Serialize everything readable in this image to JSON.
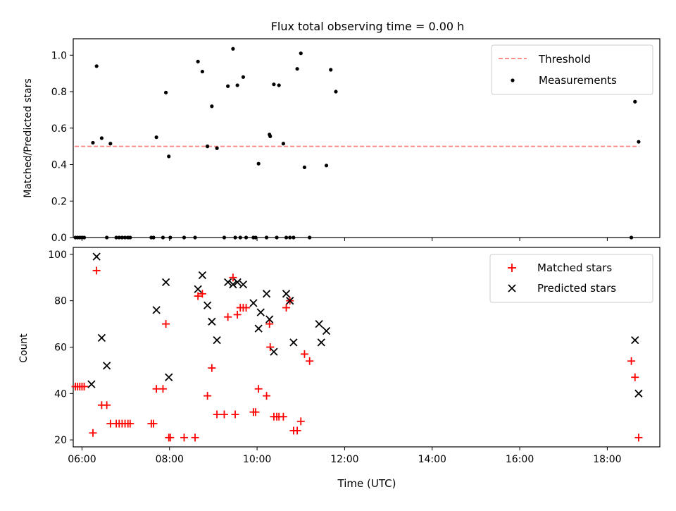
{
  "chart_data": [
    {
      "type": "scatter",
      "title": "Flux total observing time = 0.00 h",
      "ylabel": "Matched/Predicted stars",
      "xlabel": "",
      "xlim": [
        "05:48",
        "19:12"
      ],
      "ylim": [
        0,
        1.09
      ],
      "yticks": [
        "0.0",
        "0.2",
        "0.4",
        "0.6",
        "0.8",
        "1.0"
      ],
      "xticks": [
        "06:00",
        "08:00",
        "10:00",
        "12:00",
        "14:00",
        "16:00",
        "18:00"
      ],
      "xticklabels_visible": false,
      "legend_position": "upper right",
      "threshold": {
        "name": "Threshold",
        "y": 0.5,
        "x_start": "05:50",
        "x_end": "18:44",
        "color": "#ff7f7f",
        "style": "dashed"
      },
      "series": [
        {
          "name": "Measurements",
          "color": "#000000",
          "marker": "dot",
          "points": [
            [
              "05:51",
              0
            ],
            [
              "05:54",
              0
            ],
            [
              "05:57",
              0
            ],
            [
              "06:00",
              0
            ],
            [
              "06:03",
              0
            ],
            [
              "06:15",
              0.52
            ],
            [
              "06:20",
              0.94
            ],
            [
              "06:27",
              0.545
            ],
            [
              "06:34",
              0
            ],
            [
              "06:39",
              0.515
            ],
            [
              "06:47",
              0
            ],
            [
              "06:51",
              0
            ],
            [
              "06:55",
              0
            ],
            [
              "06:59",
              0
            ],
            [
              "07:03",
              0
            ],
            [
              "07:06",
              0
            ],
            [
              "07:35",
              0
            ],
            [
              "07:38",
              0
            ],
            [
              "07:42",
              0.55
            ],
            [
              "07:51",
              0
            ],
            [
              "07:55",
              0.795
            ],
            [
              "07:59",
              0.445
            ],
            [
              "08:01",
              0
            ],
            [
              "08:20",
              0
            ],
            [
              "08:35",
              0
            ],
            [
              "08:39",
              0.965
            ],
            [
              "08:45",
              0.91
            ],
            [
              "08:52",
              0.5
            ],
            [
              "08:58",
              0.72
            ],
            [
              "09:05",
              0.49
            ],
            [
              "09:15",
              0
            ],
            [
              "09:20",
              0.83
            ],
            [
              "09:27",
              1.035
            ],
            [
              "09:30",
              0
            ],
            [
              "09:33",
              0.835
            ],
            [
              "09:37",
              0
            ],
            [
              "09:41",
              0.88
            ],
            [
              "09:45",
              0
            ],
            [
              "09:55",
              0
            ],
            [
              "09:58",
              0
            ],
            [
              "10:02",
              0.405
            ],
            [
              "10:13",
              0
            ],
            [
              "10:17",
              0.565
            ],
            [
              "10:18",
              0.555
            ],
            [
              "10:23",
              0.84
            ],
            [
              "10:27",
              0
            ],
            [
              "10:30",
              0.835
            ],
            [
              "10:36",
              0.515
            ],
            [
              "10:40",
              0
            ],
            [
              "10:45",
              0
            ],
            [
              "10:50",
              0
            ],
            [
              "10:55",
              0.925
            ],
            [
              "11:00",
              1.01
            ],
            [
              "11:05",
              0.385
            ],
            [
              "11:12",
              0
            ],
            [
              "11:35",
              0.395
            ],
            [
              "11:41",
              0.92
            ],
            [
              "11:48",
              0.8
            ],
            [
              "18:33",
              0
            ],
            [
              "18:38",
              0.745
            ],
            [
              "18:43",
              0.525
            ]
          ]
        }
      ]
    },
    {
      "type": "scatter",
      "title": "",
      "ylabel": "Count",
      "xlabel": "Time (UTC)",
      "xlim": [
        "05:48",
        "19:12"
      ],
      "ylim": [
        17,
        103
      ],
      "yticks": [
        "20",
        "40",
        "60",
        "80",
        "100"
      ],
      "xticks": [
        "06:00",
        "08:00",
        "10:00",
        "12:00",
        "14:00",
        "16:00",
        "18:00"
      ],
      "legend_position": "upper right",
      "series": [
        {
          "name": "Matched stars",
          "color": "#ff0000",
          "marker": "plus",
          "points": [
            [
              "05:51",
              43
            ],
            [
              "05:54",
              43
            ],
            [
              "05:57",
              43
            ],
            [
              "06:00",
              43
            ],
            [
              "06:03",
              43
            ],
            [
              "06:15",
              23
            ],
            [
              "06:20",
              93
            ],
            [
              "06:27",
              35
            ],
            [
              "06:34",
              35
            ],
            [
              "06:39",
              27
            ],
            [
              "06:47",
              27
            ],
            [
              "06:51",
              27
            ],
            [
              "06:55",
              27
            ],
            [
              "06:59",
              27
            ],
            [
              "07:03",
              27
            ],
            [
              "07:06",
              27
            ],
            [
              "07:35",
              27
            ],
            [
              "07:38",
              27
            ],
            [
              "07:42",
              42
            ],
            [
              "07:51",
              42
            ],
            [
              "07:55",
              70
            ],
            [
              "07:59",
              21
            ],
            [
              "08:01",
              21
            ],
            [
              "08:20",
              21
            ],
            [
              "08:35",
              21
            ],
            [
              "08:39",
              82
            ],
            [
              "08:45",
              83
            ],
            [
              "08:52",
              39
            ],
            [
              "08:58",
              51
            ],
            [
              "09:05",
              31
            ],
            [
              "09:15",
              31
            ],
            [
              "09:20",
              73
            ],
            [
              "09:27",
              90
            ],
            [
              "09:30",
              31
            ],
            [
              "09:33",
              74
            ],
            [
              "09:37",
              77
            ],
            [
              "09:41",
              77
            ],
            [
              "09:45",
              77
            ],
            [
              "09:55",
              32
            ],
            [
              "09:58",
              32
            ],
            [
              "10:02",
              42
            ],
            [
              "10:13",
              39
            ],
            [
              "10:17",
              70
            ],
            [
              "10:18",
              60
            ],
            [
              "10:23",
              30
            ],
            [
              "10:27",
              30
            ],
            [
              "10:30",
              30
            ],
            [
              "10:36",
              30
            ],
            [
              "10:40",
              77
            ],
            [
              "10:45",
              80
            ],
            [
              "10:50",
              24
            ],
            [
              "10:55",
              24
            ],
            [
              "11:00",
              28
            ],
            [
              "11:05",
              57
            ],
            [
              "11:12",
              54
            ],
            [
              "18:33",
              54
            ],
            [
              "18:38",
              47
            ],
            [
              "18:43",
              21
            ]
          ]
        },
        {
          "name": "Predicted stars",
          "color": "#000000",
          "marker": "x",
          "points": [
            [
              "06:13",
              44
            ],
            [
              "06:20",
              99
            ],
            [
              "06:27",
              64
            ],
            [
              "06:34",
              52
            ],
            [
              "07:42",
              76
            ],
            [
              "07:55",
              88
            ],
            [
              "07:59",
              47
            ],
            [
              "08:39",
              85
            ],
            [
              "08:45",
              91
            ],
            [
              "08:52",
              78
            ],
            [
              "08:58",
              71
            ],
            [
              "09:05",
              63
            ],
            [
              "09:20",
              88
            ],
            [
              "09:27",
              87
            ],
            [
              "09:33",
              88
            ],
            [
              "09:41",
              87
            ],
            [
              "09:55",
              79
            ],
            [
              "10:02",
              68
            ],
            [
              "10:05",
              75
            ],
            [
              "10:13",
              83
            ],
            [
              "10:17",
              72
            ],
            [
              "10:23",
              58
            ],
            [
              "10:40",
              83
            ],
            [
              "10:45",
              80
            ],
            [
              "10:50",
              62
            ],
            [
              "11:25",
              70
            ],
            [
              "11:28",
              62
            ],
            [
              "11:35",
              67
            ],
            [
              "18:38",
              63
            ],
            [
              "18:43",
              40
            ]
          ]
        }
      ]
    }
  ]
}
